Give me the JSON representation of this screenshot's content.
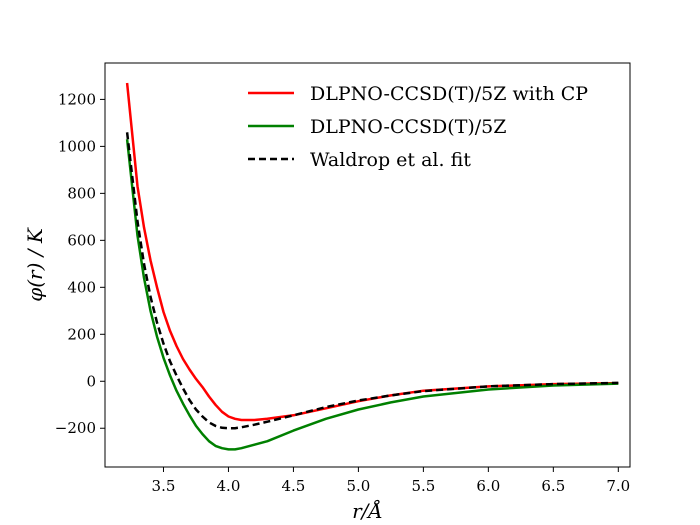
{
  "chart_data": {
    "type": "line",
    "xlabel": "r/Å",
    "ylabel": "φ(r) / K",
    "xlim": [
      3.05,
      7.09
    ],
    "ylim": [
      -365,
      1355
    ],
    "xticks": [
      3.5,
      4.0,
      4.5,
      5.0,
      5.5,
      6.0,
      6.5,
      7.0
    ],
    "xtick_labels": [
      "3.5",
      "4.0",
      "4.5",
      "5.0",
      "5.5",
      "6.0",
      "6.5",
      "7.0"
    ],
    "yticks": [
      -200,
      0,
      200,
      400,
      600,
      800,
      1000,
      1200
    ],
    "ytick_labels": [
      "−200",
      "0",
      "200",
      "400",
      "600",
      "800",
      "1000",
      "1200"
    ],
    "grid": false,
    "legend_position": "top-right",
    "series": [
      {
        "name": "DLPNO-CCSD(T)/5Z with CP",
        "color": "#ff0000",
        "dash": "solid",
        "x": [
          3.22,
          3.3,
          3.35,
          3.4,
          3.45,
          3.5,
          3.55,
          3.6,
          3.65,
          3.7,
          3.75,
          3.8,
          3.85,
          3.9,
          3.95,
          4.0,
          4.05,
          4.1,
          4.2,
          4.3,
          4.5,
          4.75,
          5.0,
          5.25,
          5.5,
          6.0,
          6.5,
          7.0
        ],
        "y": [
          1270,
          830,
          655,
          515,
          400,
          295,
          215,
          150,
          95,
          50,
          10,
          -25,
          -65,
          -100,
          -130,
          -150,
          -160,
          -165,
          -165,
          -160,
          -145,
          -115,
          -85,
          -60,
          -40,
          -22,
          -12,
          -8
        ]
      },
      {
        "name": "DLPNO-CCSD(T)/5Z",
        "color": "#008000",
        "dash": "solid",
        "x": [
          3.22,
          3.3,
          3.35,
          3.4,
          3.45,
          3.5,
          3.55,
          3.6,
          3.65,
          3.7,
          3.75,
          3.8,
          3.85,
          3.9,
          3.95,
          4.0,
          4.05,
          4.1,
          4.2,
          4.3,
          4.5,
          4.75,
          5.0,
          5.25,
          5.5,
          6.0,
          6.5,
          7.0
        ],
        "y": [
          1030,
          620,
          440,
          300,
          190,
          100,
          25,
          -40,
          -95,
          -145,
          -190,
          -225,
          -255,
          -275,
          -285,
          -290,
          -290,
          -285,
          -270,
          -255,
          -210,
          -160,
          -120,
          -90,
          -65,
          -35,
          -18,
          -10
        ]
      },
      {
        "name": "Waldrop et al. fit",
        "color": "#000000",
        "dash": "dashed",
        "x": [
          3.22,
          3.3,
          3.35,
          3.4,
          3.45,
          3.5,
          3.55,
          3.6,
          3.65,
          3.7,
          3.75,
          3.8,
          3.85,
          3.9,
          3.95,
          4.0,
          4.05,
          4.1,
          4.2,
          4.3,
          4.5,
          4.75,
          5.0,
          5.25,
          5.5,
          6.0,
          6.5,
          7.0
        ],
        "y": [
          1060,
          680,
          500,
          360,
          250,
          160,
          85,
          25,
          -30,
          -80,
          -120,
          -150,
          -175,
          -190,
          -198,
          -200,
          -200,
          -196,
          -185,
          -172,
          -145,
          -110,
          -82,
          -60,
          -42,
          -22,
          -12,
          -7
        ]
      }
    ]
  }
}
